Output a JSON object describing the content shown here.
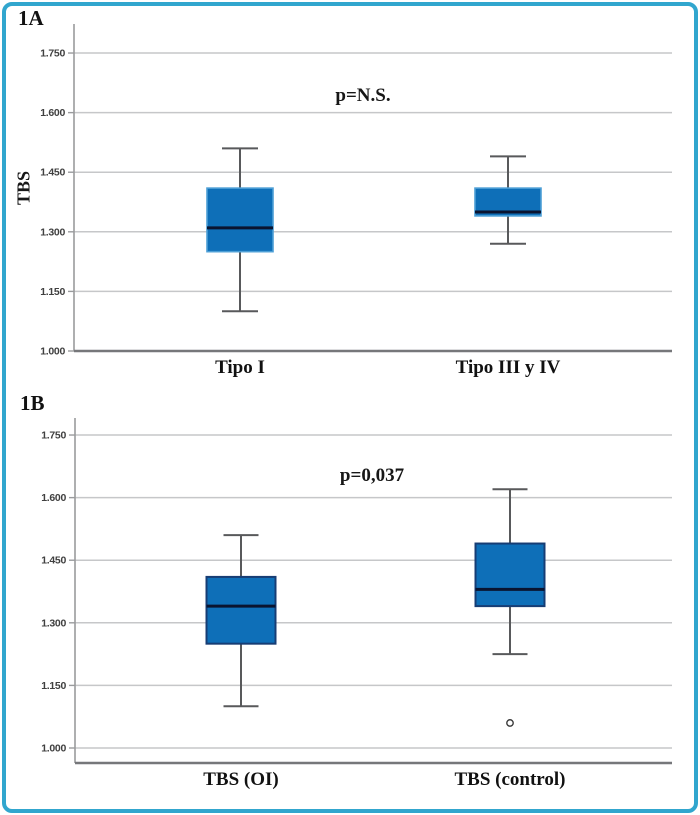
{
  "figure": {
    "panels": [
      "1A",
      "1B"
    ]
  },
  "colors": {
    "frame_border": "#31a6ce",
    "background": "#ffffff",
    "box_fill": "#0e6fb8",
    "box_edge_panel_a": "#4d9fd6",
    "box_edge_panel_b": "#173d74",
    "median_line": "#0a1430",
    "whisker": "#58595b",
    "gridline": "#c6c7c9",
    "spine": "#9a9b9d",
    "axis_bottom": "#76777a",
    "outlier_stroke": "#3a3a3a",
    "tick_text": "#404040",
    "label_text": "#111111"
  },
  "chart_data": [
    {
      "type": "box",
      "panel_label": "1A",
      "ylabel": "TBS",
      "annotation": "p=N.S.",
      "categories": [
        "Tipo I",
        "Tipo III y IV"
      ],
      "yticks": [
        "1.750",
        "1.600",
        "1.450",
        "1.300",
        "1.150",
        "1.000"
      ],
      "ylim": [
        1.0,
        1.825
      ],
      "grid": true,
      "series": [
        {
          "name": "Tipo I",
          "whisker_low": 1.1,
          "q1": 1.25,
          "median": 1.31,
          "q3": 1.41,
          "whisker_high": 1.51,
          "outliers": []
        },
        {
          "name": "Tipo III y IV",
          "whisker_low": 1.27,
          "q1": 1.34,
          "median": 1.35,
          "q3": 1.41,
          "whisker_high": 1.49,
          "outliers": []
        }
      ]
    },
    {
      "type": "box",
      "panel_label": "1B",
      "ylabel": "",
      "annotation": "p=0,037",
      "categories": [
        "TBS (OI)",
        "TBS (control)"
      ],
      "yticks": [
        "1.750",
        "1.600",
        "1.450",
        "1.300",
        "1.150",
        "1.000"
      ],
      "ylim": [
        0.964,
        1.79
      ],
      "grid": true,
      "series": [
        {
          "name": "TBS (OI)",
          "whisker_low": 1.1,
          "q1": 1.25,
          "median": 1.34,
          "q3": 1.41,
          "whisker_high": 1.51,
          "outliers": []
        },
        {
          "name": "TBS (control)",
          "whisker_low": 1.225,
          "q1": 1.34,
          "median": 1.38,
          "q3": 1.49,
          "whisker_high": 1.62,
          "outliers": [
            1.06
          ]
        }
      ]
    }
  ]
}
